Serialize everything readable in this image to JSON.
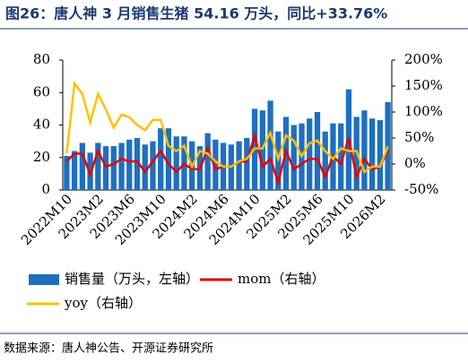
{
  "chart_data": {
    "type": "bar",
    "title": "图26：唐人神 3 月销售生猪 54.16 万头，同比+33.76%",
    "source": "数据来源：唐人神公告、开源证券研究所",
    "categories": [
      "2022M10",
      null,
      null,
      null,
      "2023M2",
      null,
      null,
      null,
      "2023M6",
      null,
      null,
      null,
      "2023M10",
      null,
      null,
      null,
      "2024M2",
      null,
      null,
      null,
      "2024M6",
      null,
      null,
      null,
      "2024M10",
      null,
      null,
      null,
      "2025M2",
      null,
      null,
      null,
      "2025M6",
      null,
      null,
      null,
      "2025M10",
      null,
      null,
      null,
      "2026M2",
      null
    ],
    "series": [
      {
        "name": "销售量（万头，左轴）",
        "type": "bar",
        "color": "#1f6fc0",
        "values": [
          21,
          24,
          29,
          23,
          29,
          27,
          27,
          29,
          31,
          32,
          28,
          30,
          38,
          38,
          33,
          33,
          30,
          27,
          35,
          31,
          29,
          28,
          30,
          32,
          50,
          49,
          55,
          36,
          45,
          40,
          41,
          44,
          48,
          36,
          41,
          41,
          62,
          45,
          49,
          44,
          43,
          54.16
        ]
      },
      {
        "name": "mom（右轴）",
        "type": "line",
        "axis": "y2",
        "color": "#e60000",
        "values": [
          5,
          20,
          20,
          -20,
          25,
          -5,
          0,
          10,
          5,
          5,
          -15,
          5,
          25,
          0,
          -15,
          0,
          -10,
          -10,
          30,
          -10,
          -5,
          -5,
          5,
          5,
          55,
          -5,
          10,
          -35,
          25,
          -10,
          0,
          10,
          10,
          -25,
          15,
          0,
          50,
          -25,
          10,
          -10,
          -5,
          26
        ]
      },
      {
        "name": "yoy（右轴）",
        "type": "line",
        "axis": "y2",
        "color": "#ffc000",
        "values": [
          20,
          155,
          135,
          80,
          135,
          105,
          70,
          95,
          90,
          75,
          65,
          85,
          85,
          35,
          25,
          35,
          -5,
          25,
          20,
          5,
          -5,
          -5,
          5,
          10,
          30,
          30,
          60,
          10,
          55,
          45,
          15,
          40,
          45,
          25,
          10,
          30,
          25,
          25,
          -15,
          -5,
          -5,
          33.76
        ]
      }
    ],
    "ylim": [
      0,
      80
    ],
    "yticks": [
      0,
      20,
      40,
      60,
      80
    ],
    "y2lim": [
      -50,
      200
    ],
    "y2ticks": [
      {
        "value": -50,
        "label": "-50%"
      },
      {
        "value": 0,
        "label": "0%"
      },
      {
        "value": 50,
        "label": "50%"
      },
      {
        "value": 100,
        "label": "100%"
      },
      {
        "value": 150,
        "label": "150%"
      },
      {
        "value": 200,
        "label": "200%"
      }
    ]
  }
}
